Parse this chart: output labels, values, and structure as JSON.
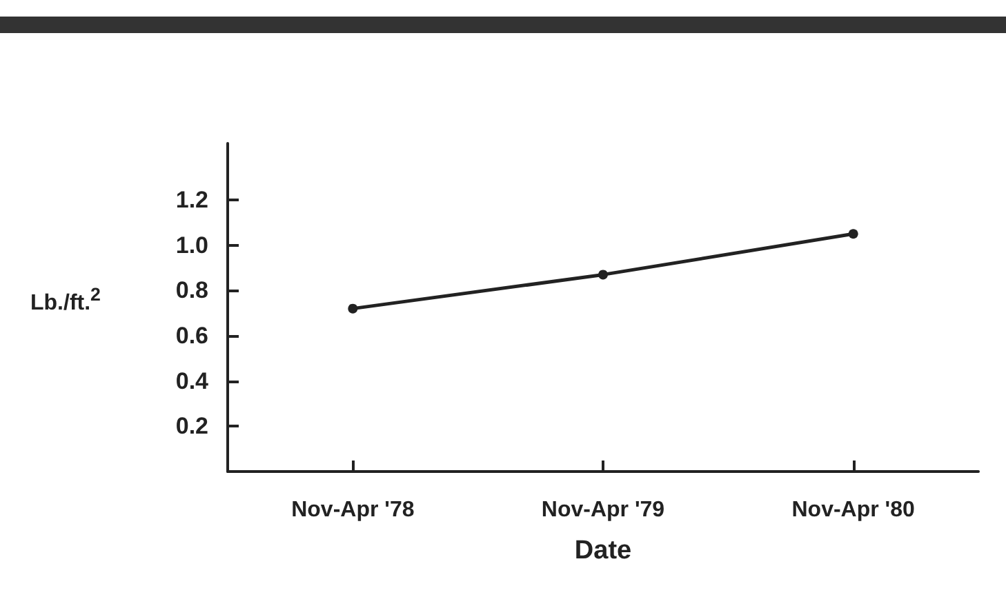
{
  "chart_data": {
    "type": "line",
    "xlabel": "Date",
    "ylabel": "Lb./ft.$^{2}$",
    "categories": [
      "Nov-Apr '78",
      "Nov-Apr '79",
      "Nov-Apr '80"
    ],
    "series": [
      {
        "color": "#222222",
        "values": [
          0.72,
          0.87,
          1.05
        ]
      }
    ],
    "ylim": [
      0,
      1.45
    ],
    "yticks": [
      0.2,
      0.4,
      0.6,
      0.8,
      {
        "value": 1,
        "label": "1.0"
      },
      1.2
    ],
    "marker": "circle",
    "line_style": "solid",
    "grid": false
  }
}
